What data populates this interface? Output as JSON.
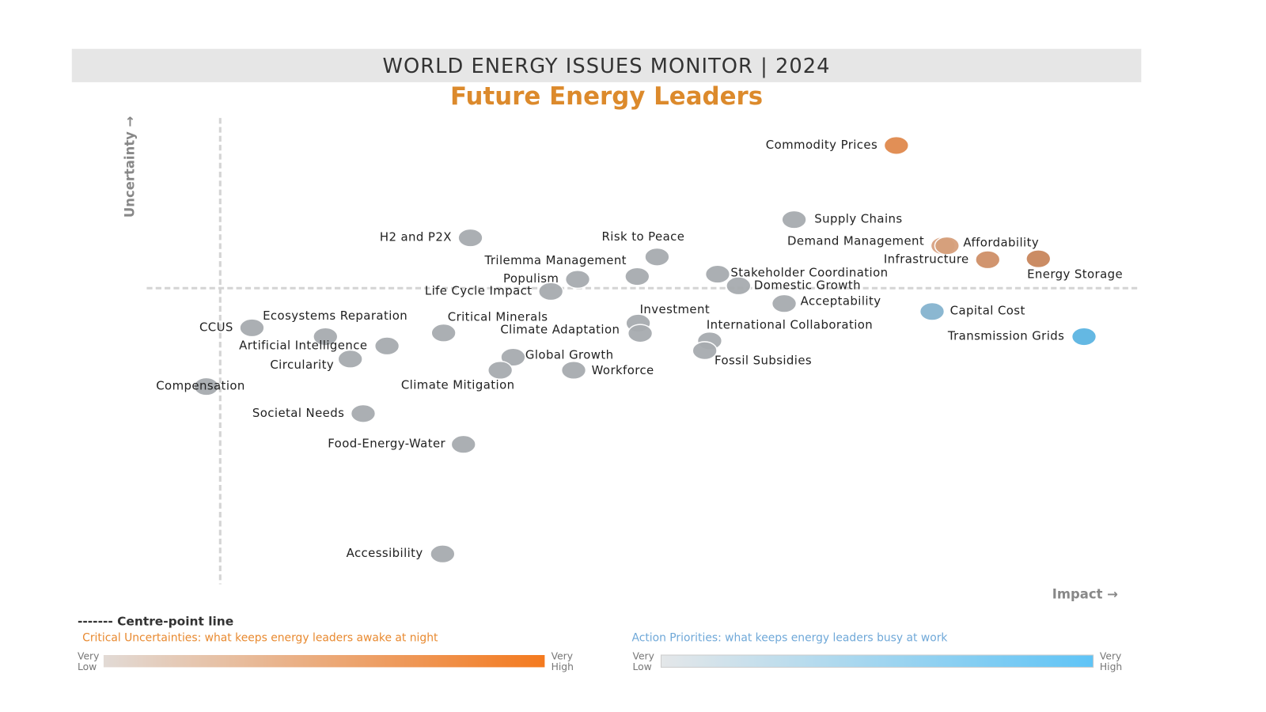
{
  "chart_data": {
    "type": "scatter",
    "title": "WORLD ENERGY ISSUES MONITOR | 2024",
    "subtitle": "Future Energy Leaders",
    "y_label": "Uncertainty →",
    "x_label": "Impact →",
    "xlim": [
      0,
      100
    ],
    "ylim": [
      0,
      100
    ],
    "centre": {
      "x": 7.4,
      "y": 63.5
    },
    "points": [
      {
        "label": "Commodity Prices",
        "x": 75.5,
        "y": 94.1,
        "color": "#e08a4e"
      },
      {
        "label": "Supply Chains",
        "x": 65.2,
        "y": 78.2,
        "color": "#a7abaf"
      },
      {
        "label": "Demand Management",
        "x": 80.2,
        "y": 72.6,
        "color": "#d9a282"
      },
      {
        "label": "Affordability",
        "x": 80.6,
        "y": 72.6,
        "color": "#d6a07c"
      },
      {
        "label": "Infrastructure",
        "x": 84.7,
        "y": 69.6,
        "color": "#cf9068"
      },
      {
        "label": "Energy Storage",
        "x": 89.8,
        "y": 69.8,
        "color": "#c9865c"
      },
      {
        "label": "H2 and P2X",
        "x": 32.6,
        "y": 74.3,
        "color": "#a7abaf"
      },
      {
        "label": "Risk to Peace",
        "x": 51.4,
        "y": 70.2,
        "color": "#a7abaf"
      },
      {
        "label": "Trilemma Management",
        "x": 49.4,
        "y": 66.0,
        "color": "#a7abaf"
      },
      {
        "label": "Populism",
        "x": 43.4,
        "y": 65.4,
        "color": "#a7abaf"
      },
      {
        "label": "Life Cycle Impact",
        "x": 40.7,
        "y": 62.8,
        "color": "#a7abaf"
      },
      {
        "label": "Stakeholder Coordination",
        "x": 57.5,
        "y": 66.5,
        "color": "#a7abaf"
      },
      {
        "label": "Domestic Growth",
        "x": 59.6,
        "y": 64.0,
        "color": "#a7abaf"
      },
      {
        "label": "Acceptability",
        "x": 64.2,
        "y": 60.2,
        "color": "#a7abaf"
      },
      {
        "label": "Capital Cost",
        "x": 79.1,
        "y": 58.5,
        "color": "#85b4cf"
      },
      {
        "label": "Transmission Grids",
        "x": 94.4,
        "y": 53.1,
        "color": "#5cb5e2"
      },
      {
        "label": "Investment",
        "x": 49.5,
        "y": 56.0,
        "color": "#a7abaf"
      },
      {
        "label": "Climate Adaptation",
        "x": 49.7,
        "y": 53.8,
        "color": "#a7abaf"
      },
      {
        "label": "International Collaboration",
        "x": 56.7,
        "y": 52.2,
        "color": "#a7abaf"
      },
      {
        "label": "Fossil Subsidies",
        "x": 56.2,
        "y": 50.1,
        "color": "#a7abaf"
      },
      {
        "label": "Critical Minerals",
        "x": 29.9,
        "y": 53.9,
        "color": "#a7abaf"
      },
      {
        "label": "Ecosystems Reparation",
        "x": 18.0,
        "y": 53.1,
        "color": "#a7abaf"
      },
      {
        "label": "CCUS",
        "x": 10.6,
        "y": 55.0,
        "color": "#a7abaf"
      },
      {
        "label": "Artificial Intelligence",
        "x": 24.2,
        "y": 51.1,
        "color": "#a7abaf"
      },
      {
        "label": "Circularity",
        "x": 20.5,
        "y": 48.3,
        "color": "#a7abaf"
      },
      {
        "label": "Global Growth",
        "x": 36.9,
        "y": 48.7,
        "color": "#a7abaf"
      },
      {
        "label": "Climate Mitigation",
        "x": 35.6,
        "y": 45.9,
        "color": "#a7abaf"
      },
      {
        "label": "Workforce",
        "x": 43.0,
        "y": 45.9,
        "color": "#a7abaf"
      },
      {
        "label": "Compensation",
        "x": 6.0,
        "y": 42.4,
        "color": "#a7abaf"
      },
      {
        "label": "Societal Needs",
        "x": 21.8,
        "y": 36.6,
        "color": "#a7abaf"
      },
      {
        "label": "Food-Energy-Water",
        "x": 31.9,
        "y": 30.0,
        "color": "#a7abaf"
      },
      {
        "label": "Accessibility",
        "x": 29.8,
        "y": 6.5,
        "color": "#a7abaf"
      }
    ],
    "legend": {
      "centre_line": "------- Centre-point line",
      "critical": {
        "text": "Critical Uncertainties: what keeps energy leaders awake at night",
        "colors": [
          "#e2dad5",
          "#f47a1f"
        ]
      },
      "action": {
        "text": "Action Priorities: what keeps energy leaders busy at work",
        "colors": [
          "#e4e7e9",
          "#5fc4f6"
        ]
      },
      "scale_low": [
        "Very",
        "Low"
      ],
      "scale_high": [
        "Very",
        "High"
      ]
    }
  }
}
